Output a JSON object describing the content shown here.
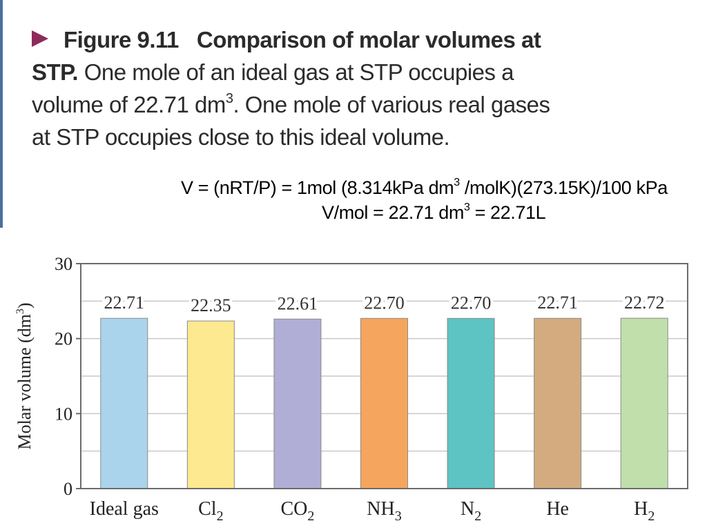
{
  "caption": {
    "figure_label": "Figure 9.11",
    "title": "Comparison of molar volumes at STP.",
    "body_part1": "One mole of an ideal gas at STP occupies a volume of 22.71 dm",
    "body_sup": "3",
    "body_part2": ". One mole of various real gases at STP occupies close to this ideal volume."
  },
  "formula": {
    "line1_a": "V = (nRT/P) = 1mol (8.314kPa dm",
    "line1_sup": "3",
    "line1_b": " /molK)(273.15K)/100 kPa",
    "line2_a": "V/mol = 22.71 dm",
    "line2_sup": "3",
    "line2_b": " = 22.71L"
  },
  "chart_data": {
    "type": "bar",
    "ylabel": "Molar volume (dm",
    "ylabel_sup": "3",
    "ylabel_end": ")",
    "ylim": [
      0,
      30
    ],
    "yticks": [
      0,
      10,
      20,
      30
    ],
    "grid": true,
    "categories": [
      {
        "label": "Ideal gas",
        "sub": ""
      },
      {
        "label": "Cl",
        "sub": "2"
      },
      {
        "label": "CO",
        "sub": "2"
      },
      {
        "label": "NH",
        "sub": "3"
      },
      {
        "label": "N",
        "sub": "2"
      },
      {
        "label": "He",
        "sub": ""
      },
      {
        "label": "H",
        "sub": "2"
      }
    ],
    "values": [
      22.71,
      22.35,
      22.61,
      22.7,
      22.7,
      22.71,
      22.72
    ],
    "value_labels": [
      "22.71",
      "22.35",
      "22.61",
      "22.70",
      "22.70",
      "22.71",
      "22.72"
    ],
    "colors": [
      "#a9d4ec",
      "#fde98f",
      "#b0aed6",
      "#f6a55e",
      "#5ec3c3",
      "#d3ab7e",
      "#c0dfab"
    ]
  }
}
